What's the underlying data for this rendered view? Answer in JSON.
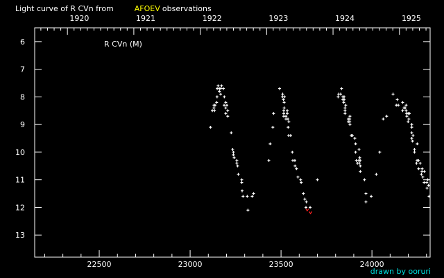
{
  "chart_data": {
    "type": "scatter",
    "title_prefix": "Light curve of R CVn from",
    "title_source": "AFOEV",
    "title_suffix": "observations",
    "annotation": "R CVn (M)",
    "credit": "drawn by ooruri",
    "xlabel": "",
    "ylabel": "",
    "xlim": [
      22145,
      24320
    ],
    "ylim": [
      5.5,
      13.8
    ],
    "y_inverted": true,
    "grid": false,
    "x_ticks": [
      22500,
      23000,
      23500,
      24000
    ],
    "y_ticks": [
      6,
      7,
      8,
      9,
      10,
      11,
      12,
      13
    ],
    "top_axis_years": [
      {
        "label": "1920",
        "jd": 22325
      },
      {
        "label": "1921",
        "jd": 22690
      },
      {
        "label": "1922",
        "jd": 23055
      },
      {
        "label": "1923",
        "jd": 23420
      },
      {
        "label": "1924",
        "jd": 23785
      },
      {
        "label": "1925",
        "jd": 24151
      }
    ],
    "colors": {
      "background": "#000000",
      "axes": "#ffffff",
      "points": "#ffffff",
      "highlight": "#ff2020",
      "source": "#ffff00",
      "credit": "#00e0e0"
    },
    "series": [
      {
        "color": "#ffffff",
        "marker": "plus",
        "points": [
          [
            23154,
            7.6
          ],
          [
            23173,
            7.6
          ],
          [
            23149,
            7.7
          ],
          [
            23161,
            7.7
          ],
          [
            23168,
            7.7
          ],
          [
            23183,
            7.7
          ],
          [
            23161,
            7.8
          ],
          [
            23168,
            7.9
          ],
          [
            23148,
            8.0
          ],
          [
            23188,
            8.0
          ],
          [
            23146,
            8.2
          ],
          [
            23196,
            8.2
          ],
          [
            23131,
            8.3
          ],
          [
            23137,
            8.3
          ],
          [
            23187,
            8.3
          ],
          [
            23202,
            8.3
          ],
          [
            23131,
            8.4
          ],
          [
            23196,
            8.4
          ],
          [
            23122,
            8.5
          ],
          [
            23134,
            8.5
          ],
          [
            23207,
            8.5
          ],
          [
            23196,
            8.6
          ],
          [
            23207,
            8.7
          ],
          [
            23112,
            9.1
          ],
          [
            23226,
            9.3
          ],
          [
            23234,
            9.9
          ],
          [
            23238,
            10.0
          ],
          [
            23238,
            10.1
          ],
          [
            23242,
            10.2
          ],
          [
            23257,
            10.3
          ],
          [
            23257,
            10.4
          ],
          [
            23261,
            10.5
          ],
          [
            23265,
            10.8
          ],
          [
            23284,
            11.0
          ],
          [
            23284,
            11.1
          ],
          [
            23286,
            11.4
          ],
          [
            23291,
            11.6
          ],
          [
            23314,
            11.6
          ],
          [
            23341,
            11.6
          ],
          [
            23349,
            11.5
          ],
          [
            23318,
            12.1
          ],
          [
            23492,
            7.7
          ],
          [
            23509,
            7.9
          ],
          [
            23508,
            8.0
          ],
          [
            23519,
            8.0
          ],
          [
            23513,
            8.1
          ],
          [
            23517,
            8.2
          ],
          [
            23459,
            8.6
          ],
          [
            23517,
            8.4
          ],
          [
            23515,
            8.5
          ],
          [
            23534,
            8.5
          ],
          [
            23515,
            8.6
          ],
          [
            23534,
            8.6
          ],
          [
            23515,
            8.7
          ],
          [
            23527,
            8.7
          ],
          [
            23527,
            8.8
          ],
          [
            23538,
            8.8
          ],
          [
            23543,
            8.9
          ],
          [
            23455,
            9.1
          ],
          [
            23539,
            9.1
          ],
          [
            23542,
            9.4
          ],
          [
            23553,
            9.4
          ],
          [
            23440,
            9.7
          ],
          [
            23562,
            10.0
          ],
          [
            23433,
            10.3
          ],
          [
            23565,
            10.3
          ],
          [
            23576,
            10.3
          ],
          [
            23577,
            10.5
          ],
          [
            23585,
            10.6
          ],
          [
            23593,
            10.9
          ],
          [
            23608,
            11.0
          ],
          [
            23611,
            11.1
          ],
          [
            23700,
            11.0
          ],
          [
            23623,
            11.5
          ],
          [
            23631,
            11.7
          ],
          [
            23639,
            11.8
          ],
          [
            23637,
            12.0
          ],
          [
            23660,
            12.0
          ],
          [
            23833,
            7.7
          ],
          [
            23817,
            7.9
          ],
          [
            23828,
            7.9
          ],
          [
            23814,
            8.0
          ],
          [
            23840,
            8.0
          ],
          [
            23847,
            8.0
          ],
          [
            23840,
            8.1
          ],
          [
            23847,
            8.1
          ],
          [
            23845,
            8.2
          ],
          [
            23856,
            8.3
          ],
          [
            23852,
            8.4
          ],
          [
            23852,
            8.5
          ],
          [
            23852,
            8.6
          ],
          [
            23879,
            8.7
          ],
          [
            23870,
            8.8
          ],
          [
            23878,
            8.8
          ],
          [
            23870,
            8.9
          ],
          [
            23878,
            8.9
          ],
          [
            23879,
            9.0
          ],
          [
            23886,
            9.4
          ],
          [
            23893,
            9.4
          ],
          [
            23906,
            9.5
          ],
          [
            23910,
            9.7
          ],
          [
            23929,
            9.9
          ],
          [
            23910,
            10.0
          ],
          [
            23933,
            10.2
          ],
          [
            23914,
            10.3
          ],
          [
            23928,
            10.3
          ],
          [
            23935,
            10.3
          ],
          [
            23920,
            10.4
          ],
          [
            23931,
            10.4
          ],
          [
            23936,
            10.5
          ],
          [
            23936,
            10.7
          ],
          [
            23959,
            11.0
          ],
          [
            23967,
            11.5
          ],
          [
            23996,
            11.6
          ],
          [
            23967,
            11.8
          ],
          [
            24043,
            10.0
          ],
          [
            24024,
            10.8
          ],
          [
            24062,
            8.8
          ],
          [
            24081,
            8.7
          ],
          [
            24116,
            7.9
          ],
          [
            24139,
            8.1
          ],
          [
            24134,
            8.3
          ],
          [
            24145,
            8.3
          ],
          [
            24169,
            8.2
          ],
          [
            24188,
            8.3
          ],
          [
            24176,
            8.4
          ],
          [
            24183,
            8.4
          ],
          [
            24169,
            8.5
          ],
          [
            24188,
            8.5
          ],
          [
            24191,
            8.6
          ],
          [
            24199,
            8.6
          ],
          [
            24206,
            8.6
          ],
          [
            24192,
            8.7
          ],
          [
            24203,
            8.8
          ],
          [
            24199,
            8.9
          ],
          [
            24219,
            9.0
          ],
          [
            24219,
            9.1
          ],
          [
            24219,
            9.3
          ],
          [
            24226,
            9.4
          ],
          [
            24219,
            9.5
          ],
          [
            24223,
            9.6
          ],
          [
            24249,
            9.7
          ],
          [
            24234,
            9.9
          ],
          [
            24234,
            10.0
          ],
          [
            24248,
            10.3
          ],
          [
            24256,
            10.3
          ],
          [
            24245,
            10.4
          ],
          [
            24265,
            10.4
          ],
          [
            24257,
            10.6
          ],
          [
            24276,
            10.6
          ],
          [
            24275,
            10.7
          ],
          [
            24288,
            10.7
          ],
          [
            24272,
            10.8
          ],
          [
            24280,
            10.9
          ],
          [
            24307,
            11.0
          ],
          [
            24287,
            11.1
          ],
          [
            24302,
            11.1
          ],
          [
            24311,
            11.2
          ],
          [
            24303,
            11.3
          ],
          [
            24314,
            11.6
          ]
        ]
      },
      {
        "color": "#ff2020",
        "marker": "v",
        "points": [
          [
            23644,
            12.1
          ],
          [
            23662,
            12.2
          ]
        ]
      }
    ]
  }
}
